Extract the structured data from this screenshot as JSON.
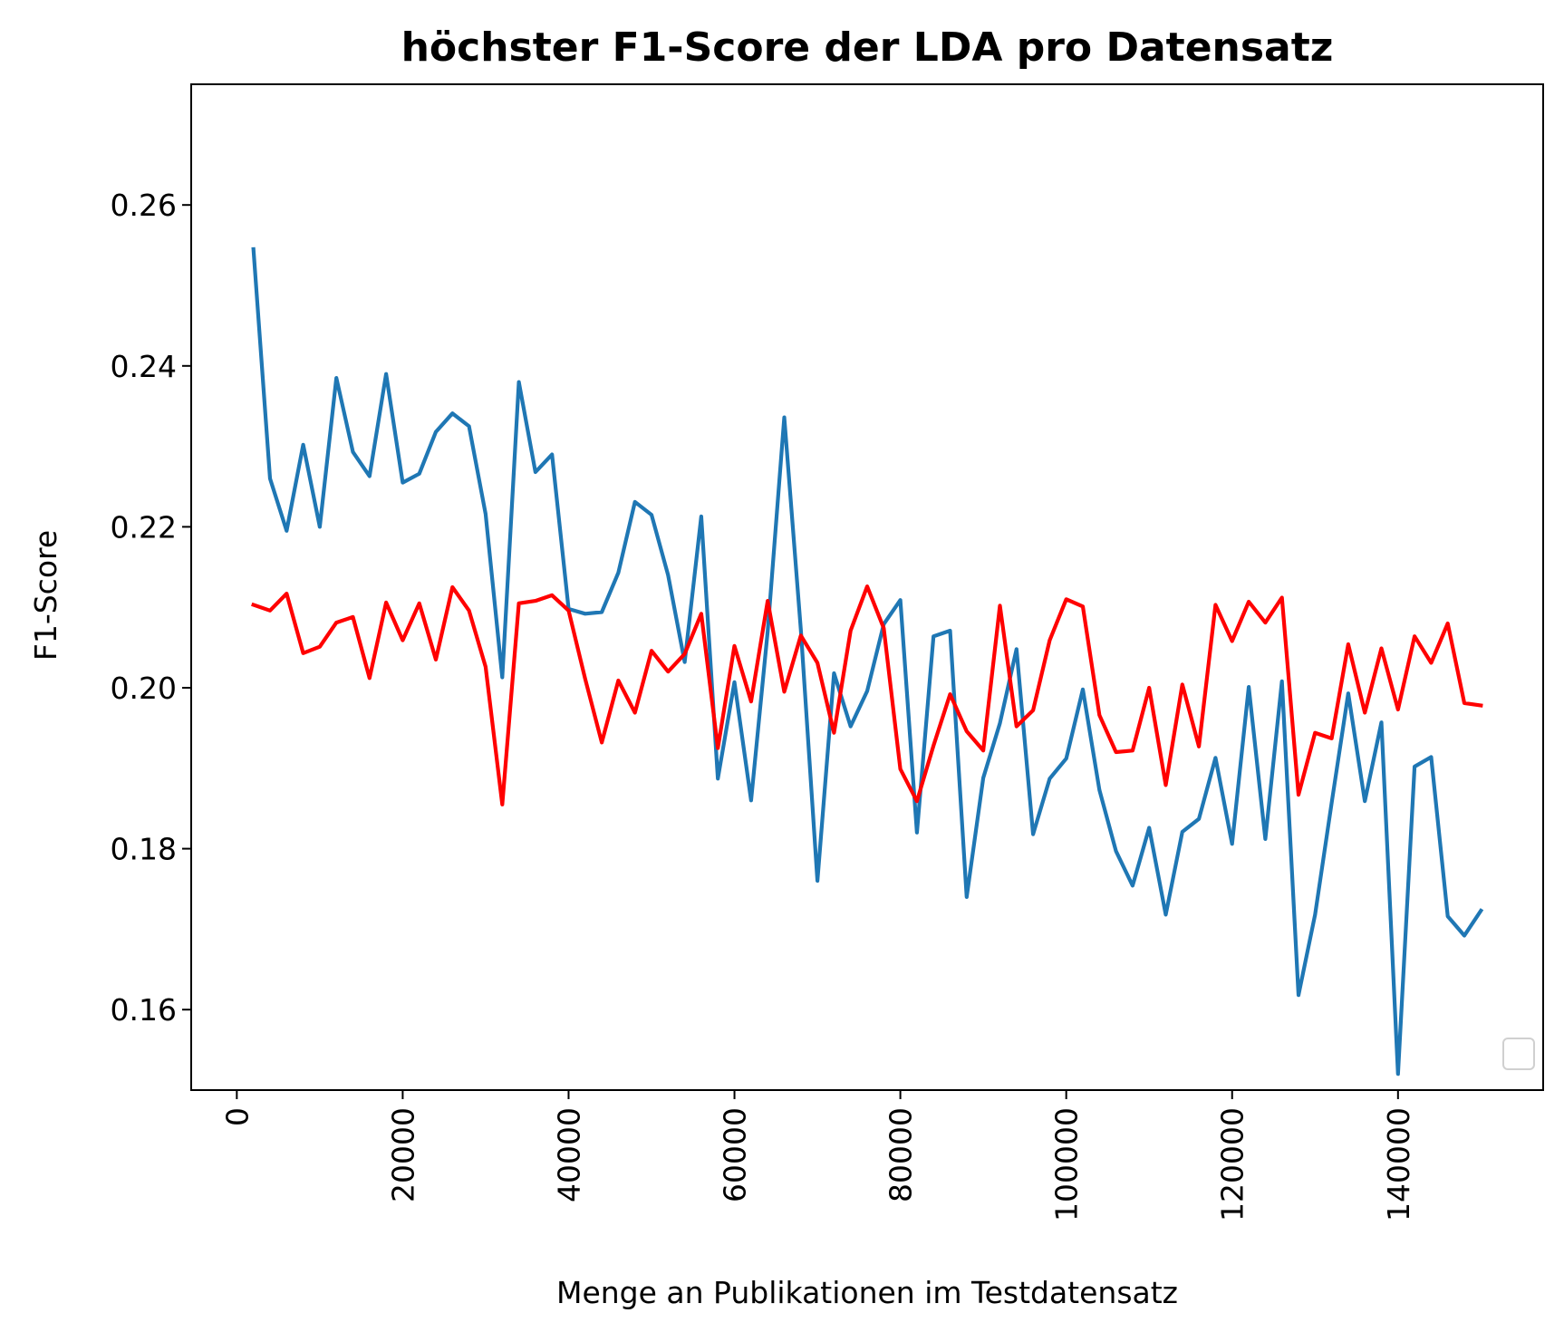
{
  "chart_data": {
    "type": "line",
    "title": "höchster F1-Score der LDA pro Datensatz",
    "xlabel": "Menge an Publikationen im Testdatensatz",
    "ylabel": "F1-Score",
    "xlim": [
      -5500,
      157500
    ],
    "ylim": [
      0.15,
      0.275
    ],
    "xticks": [
      0,
      20000,
      40000,
      60000,
      80000,
      100000,
      120000,
      140000
    ],
    "xtick_labels": [
      "0",
      "20000",
      "40000",
      "60000",
      "80000",
      "100000",
      "120000",
      "140000"
    ],
    "yticks": [
      0.16,
      0.18,
      0.2,
      0.22,
      0.24,
      0.26
    ],
    "ytick_labels": [
      "0.16",
      "0.18",
      "0.20",
      "0.22",
      "0.24",
      "0.26"
    ],
    "grid": false,
    "legend": "bottom-right (empty)",
    "x": [
      2000,
      4000,
      6000,
      8000,
      10000,
      12000,
      14000,
      16000,
      18000,
      20000,
      22000,
      24000,
      26000,
      28000,
      30000,
      32000,
      34000,
      36000,
      38000,
      40000,
      42000,
      44000,
      46000,
      48000,
      50000,
      52000,
      54000,
      56000,
      58000,
      60000,
      62000,
      64000,
      66000,
      68000,
      70000,
      72000,
      74000,
      76000,
      78000,
      80000,
      82000,
      84000,
      86000,
      88000,
      90000,
      92000,
      94000,
      96000,
      98000,
      100000,
      102000,
      104000,
      106000,
      108000,
      110000,
      112000,
      114000,
      116000,
      118000,
      120000,
      122000,
      124000,
      126000,
      128000,
      130000,
      132000,
      134000,
      136000,
      138000,
      140000,
      142000,
      144000,
      146000,
      148000,
      150000
    ],
    "series": [
      {
        "color": "#1f77b4",
        "values": [
          0.2545,
          0.226,
          0.2195,
          0.2302,
          0.22,
          0.2385,
          0.2293,
          0.2263,
          0.239,
          0.2255,
          0.2266,
          0.2318,
          0.2341,
          0.2325,
          0.2216,
          0.2013,
          0.238,
          0.2268,
          0.229,
          0.2098,
          0.2092,
          0.2094,
          0.2143,
          0.2231,
          0.2215,
          0.214,
          0.2032,
          0.2213,
          0.1887,
          0.2007,
          0.186,
          0.207,
          0.2336,
          0.2072,
          0.176,
          0.2018,
          0.1952,
          0.1996,
          0.2079,
          0.2109,
          0.182,
          0.2064,
          0.2071,
          0.174,
          0.1888,
          0.1956,
          0.2048,
          0.1818,
          0.1887,
          0.1912,
          0.1998,
          0.1873,
          0.1797,
          0.1754,
          0.1826,
          0.1718,
          0.1821,
          0.1837,
          0.1913,
          0.1806,
          0.2001,
          0.1812,
          0.2008,
          0.1618,
          0.1718,
          0.1857,
          0.1993,
          0.1859,
          0.1957,
          0.152,
          0.1902,
          0.1914,
          0.1716,
          0.1692,
          0.1723
        ]
      },
      {
        "color": "#ff0000",
        "values": [
          0.2103,
          0.2096,
          0.2117,
          0.2043,
          0.2051,
          0.2081,
          0.2088,
          0.2012,
          0.2106,
          0.2059,
          0.2105,
          0.2035,
          0.2125,
          0.2096,
          0.2026,
          0.1855,
          0.2105,
          0.2108,
          0.2115,
          0.2096,
          0.2011,
          0.1932,
          0.2009,
          0.1969,
          0.2046,
          0.202,
          0.2042,
          0.2092,
          0.1925,
          0.2052,
          0.1983,
          0.2108,
          0.1995,
          0.2065,
          0.2031,
          0.1944,
          0.2071,
          0.2126,
          0.2074,
          0.1899,
          0.1859,
          0.1928,
          0.1992,
          0.1946,
          0.1922,
          0.2102,
          0.1952,
          0.1972,
          0.2059,
          0.211,
          0.2101,
          0.1966,
          0.192,
          0.1922,
          0.2,
          0.1879,
          0.2004,
          0.1927,
          0.2103,
          0.2058,
          0.2107,
          0.2081,
          0.2112,
          0.1867,
          0.1944,
          0.1937,
          0.2054,
          0.1969,
          0.2049,
          0.1973,
          0.2064,
          0.2031,
          0.208,
          0.1981,
          0.1978
        ]
      }
    ]
  }
}
